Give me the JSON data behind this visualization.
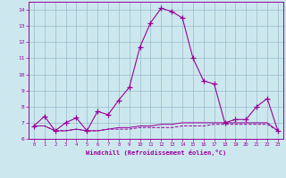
{
  "xlabel": "Windchill (Refroidissement éolien,°C)",
  "background_color": "#cce8ee",
  "line_color": "#990099",
  "grid_color": "#99bbcc",
  "x": [
    0,
    1,
    2,
    3,
    4,
    5,
    6,
    7,
    8,
    9,
    10,
    11,
    12,
    13,
    14,
    15,
    16,
    17,
    18,
    19,
    20,
    21,
    22,
    23
  ],
  "y_main": [
    6.8,
    7.4,
    6.5,
    7.0,
    7.3,
    6.5,
    7.7,
    7.5,
    8.4,
    9.2,
    11.7,
    13.2,
    14.1,
    13.9,
    13.5,
    11.0,
    9.6,
    9.4,
    7.0,
    7.2,
    7.2,
    8.0,
    8.5,
    6.5
  ],
  "y_flat1": [
    6.8,
    6.8,
    6.5,
    6.5,
    6.6,
    6.5,
    6.5,
    6.6,
    6.6,
    6.6,
    6.7,
    6.7,
    6.7,
    6.7,
    6.8,
    6.8,
    6.8,
    6.9,
    6.9,
    6.9,
    6.9,
    6.9,
    6.9,
    6.5
  ],
  "y_flat2": [
    6.8,
    6.8,
    6.5,
    6.5,
    6.6,
    6.5,
    6.5,
    6.6,
    6.7,
    6.7,
    6.8,
    6.8,
    6.9,
    6.9,
    7.0,
    7.0,
    7.0,
    7.0,
    7.0,
    7.0,
    7.0,
    7.0,
    7.0,
    6.5
  ],
  "ylim": [
    6,
    14.5
  ],
  "xlim": [
    -0.5,
    23.5
  ],
  "yticks": [
    6,
    7,
    8,
    9,
    10,
    11,
    12,
    13,
    14
  ],
  "xticks": [
    0,
    1,
    2,
    3,
    4,
    5,
    6,
    7,
    8,
    9,
    10,
    11,
    12,
    13,
    14,
    15,
    16,
    17,
    18,
    19,
    20,
    21,
    22,
    23
  ]
}
